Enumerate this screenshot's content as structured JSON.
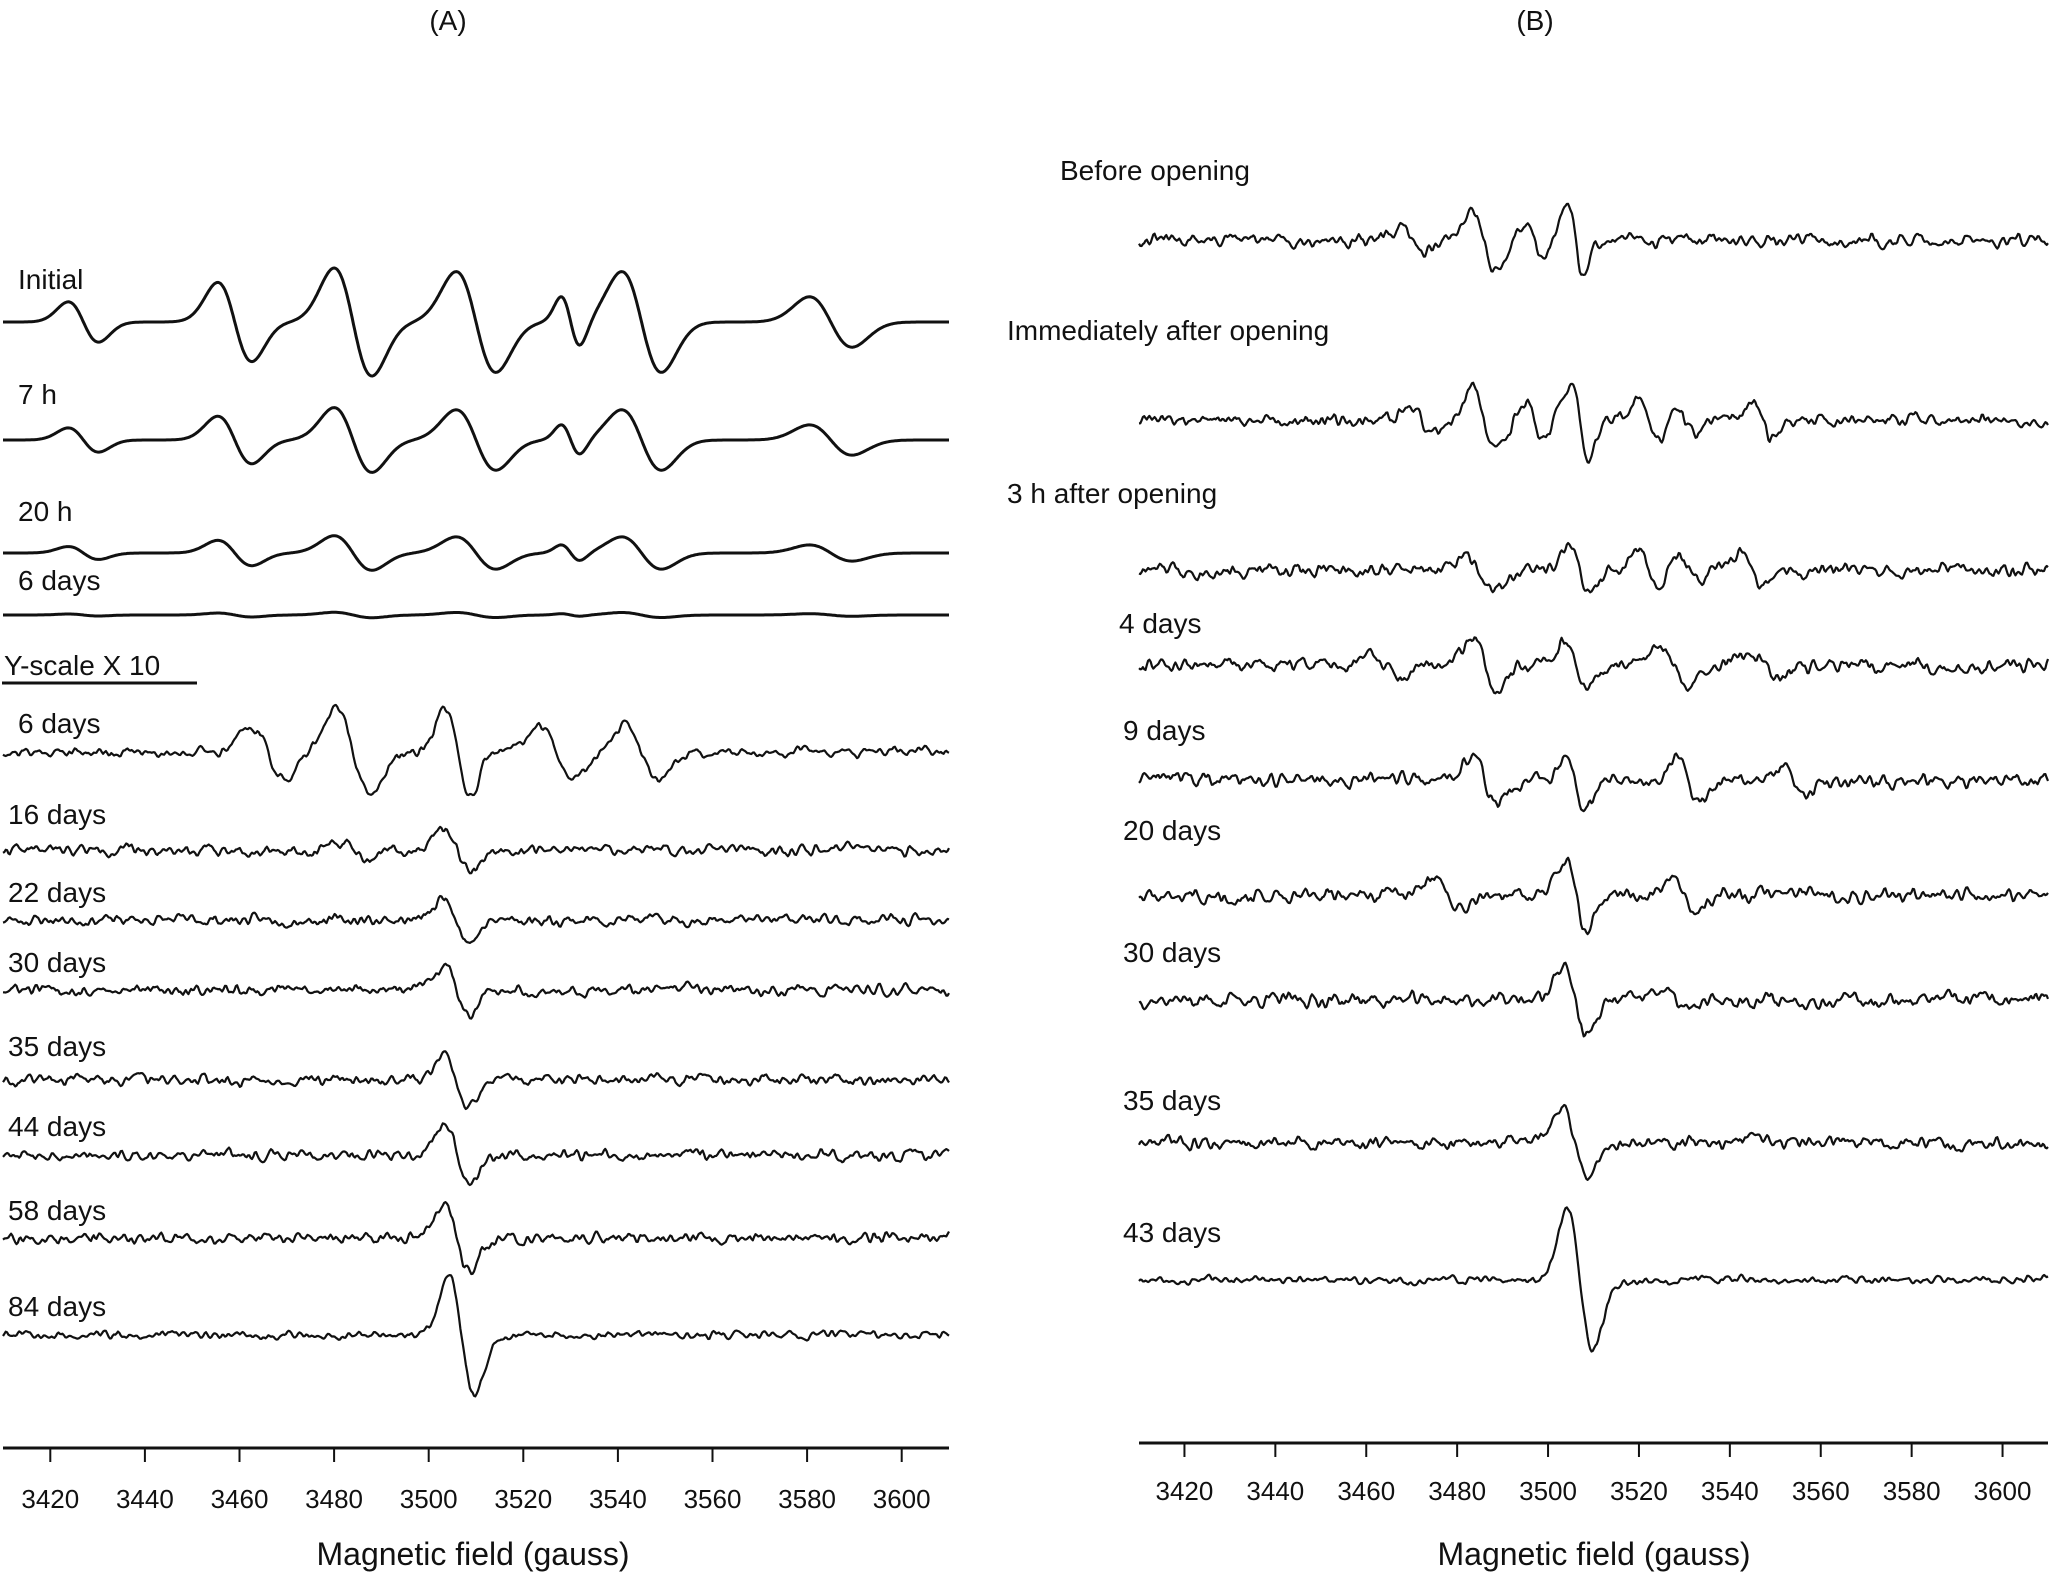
{
  "chart_data": [
    {
      "type": "line",
      "panel_label": "(A)",
      "title": "",
      "xlabel": "Magnetic field (gauss)",
      "ylabel": "",
      "xlim": [
        3410,
        3610
      ],
      "xticks": [
        3420,
        3440,
        3460,
        3480,
        3500,
        3520,
        3540,
        3560,
        3580,
        3600
      ],
      "y_axis": "none (stacked spectra, arbitrary units)",
      "scale_note": "Y-scale X 10",
      "series": [
        {
          "name": "Initial",
          "amplitude": 1.0,
          "noise": 0.0,
          "seed": 11,
          "features": [
            [
              3427,
              3.2,
              0.28
            ],
            [
              3459,
              3.6,
              0.55
            ],
            [
              3484,
              4.0,
              0.75
            ],
            [
              3510,
              4.2,
              0.7
            ],
            [
              3530,
              2.0,
              0.35
            ],
            [
              3545,
              4.2,
              0.7
            ],
            [
              3585,
              4.5,
              0.35
            ]
          ]
        },
        {
          "name": "7 h",
          "amplitude": 0.6,
          "noise": 0.0,
          "seed": 12,
          "features": [
            [
              3427,
              3.2,
              0.28
            ],
            [
              3459,
              3.6,
              0.55
            ],
            [
              3484,
              4.0,
              0.75
            ],
            [
              3510,
              4.2,
              0.7
            ],
            [
              3530,
              2.0,
              0.35
            ],
            [
              3545,
              4.2,
              0.7
            ],
            [
              3585,
              4.5,
              0.35
            ]
          ]
        },
        {
          "name": "20 h",
          "amplitude": 0.32,
          "noise": 0.0,
          "seed": 13,
          "features": [
            [
              3427,
              3.2,
              0.28
            ],
            [
              3459,
              3.6,
              0.55
            ],
            [
              3484,
              4.0,
              0.75
            ],
            [
              3510,
              4.2,
              0.7
            ],
            [
              3530,
              2.0,
              0.35
            ],
            [
              3545,
              4.2,
              0.7
            ],
            [
              3585,
              4.5,
              0.35
            ]
          ]
        },
        {
          "name": "6 days",
          "amplitude": 0.05,
          "noise": 0.0,
          "seed": 14,
          "features": [
            [
              3427,
              3.2,
              0.28
            ],
            [
              3459,
              3.6,
              0.55
            ],
            [
              3484,
              4.0,
              0.75
            ],
            [
              3510,
              4.2,
              0.7
            ],
            [
              3530,
              2.0,
              0.35
            ],
            [
              3545,
              4.2,
              0.7
            ],
            [
              3585,
              4.5,
              0.35
            ]
          ]
        },
        {
          "name": "6 days",
          "amplitude": 0.62,
          "noise": 0.12,
          "seed": 21,
          "features": [
            [
              3466,
              3.5,
              0.6
            ],
            [
              3484,
              3.5,
              1.0
            ],
            [
              3506,
              2.6,
              1.0
            ],
            [
              3527,
              3.5,
              0.6
            ],
            [
              3545,
              3.5,
              0.6
            ]
          ]
        },
        {
          "name": "16 days",
          "amplitude": 0.3,
          "noise": 0.14,
          "seed": 22,
          "features": [
            [
              3484,
              3.0,
              0.45
            ],
            [
              3506,
              2.6,
              1.0
            ]
          ]
        },
        {
          "name": "22 days",
          "amplitude": 0.32,
          "noise": 0.14,
          "seed": 23,
          "features": [
            [
              3506,
              2.6,
              1.0
            ]
          ]
        },
        {
          "name": "30 days",
          "amplitude": 0.33,
          "noise": 0.14,
          "seed": 24,
          "features": [
            [
              3506,
              2.6,
              1.0
            ]
          ]
        },
        {
          "name": "35 days",
          "amplitude": 0.38,
          "noise": 0.14,
          "seed": 25,
          "features": [
            [
              3506,
              2.6,
              1.0
            ]
          ]
        },
        {
          "name": "44 days",
          "amplitude": 0.42,
          "noise": 0.14,
          "seed": 26,
          "features": [
            [
              3506,
              2.6,
              1.0
            ]
          ]
        },
        {
          "name": "58 days",
          "amplitude": 0.48,
          "noise": 0.14,
          "seed": 27,
          "features": [
            [
              3506,
              2.6,
              1.0
            ]
          ]
        },
        {
          "name": "84 days",
          "amplitude": 0.85,
          "noise": 0.1,
          "seed": 28,
          "features": [
            [
              3507,
              2.7,
              1.0
            ]
          ]
        }
      ]
    },
    {
      "type": "line",
      "panel_label": "(B)",
      "title": "",
      "xlabel": "Magnetic field (gauss)",
      "ylabel": "",
      "xlim": [
        3410,
        3610
      ],
      "xticks": [
        3420,
        3440,
        3460,
        3480,
        3500,
        3520,
        3540,
        3560,
        3580,
        3600
      ],
      "y_axis": "none (stacked spectra, arbitrary units)",
      "series": [
        {
          "name": "Before opening",
          "amplitude": 0.5,
          "noise": 0.16,
          "seed": 31,
          "features": [
            [
              3470,
              2.5,
              0.3
            ],
            [
              3486,
              2.6,
              0.9
            ],
            [
              3497,
              2.0,
              0.5
            ],
            [
              3506,
              1.8,
              1.0
            ]
          ]
        },
        {
          "name": "Immediately after opening",
          "amplitude": 0.5,
          "noise": 0.16,
          "seed": 32,
          "features": [
            [
              3472,
              2.5,
              0.4
            ],
            [
              3486,
              2.6,
              0.9
            ],
            [
              3497,
              2.0,
              0.5
            ],
            [
              3507,
              2.0,
              1.0
            ],
            [
              3522,
              2.2,
              0.6
            ],
            [
              3530,
              2.0,
              0.4
            ],
            [
              3547,
              2.2,
              0.5
            ]
          ]
        },
        {
          "name": "3 h after opening",
          "amplitude": 0.5,
          "noise": 0.18,
          "seed": 33,
          "features": [
            [
              3485,
              3.0,
              0.5
            ],
            [
              3507,
              2.2,
              0.7
            ],
            [
              3522,
              2.0,
              0.6
            ],
            [
              3531,
              2.0,
              0.4
            ],
            [
              3545,
              2.2,
              0.5
            ]
          ]
        },
        {
          "name": "4 days",
          "amplitude": 0.5,
          "noise": 0.18,
          "seed": 34,
          "features": [
            [
              3464,
              3.0,
              0.4
            ],
            [
              3486,
              2.8,
              0.8
            ],
            [
              3506,
              2.3,
              0.7
            ],
            [
              3528,
              3.0,
              0.6
            ],
            [
              3548,
              3.0,
              0.4
            ]
          ]
        },
        {
          "name": "9 days",
          "amplitude": 0.5,
          "noise": 0.18,
          "seed": 35,
          "features": [
            [
              3486,
              2.8,
              0.7
            ],
            [
              3506,
              2.2,
              0.8
            ],
            [
              3531,
              2.5,
              0.7
            ],
            [
              3554,
              2.5,
              0.4
            ]
          ]
        },
        {
          "name": "20 days",
          "amplitude": 0.5,
          "noise": 0.18,
          "seed": 36,
          "features": [
            [
              3478,
              3.0,
              0.5
            ],
            [
              3506,
              2.4,
              1.0
            ],
            [
              3530,
              2.5,
              0.5
            ]
          ]
        },
        {
          "name": "30 days",
          "amplitude": 0.5,
          "noise": 0.18,
          "seed": 37,
          "features": [
            [
              3506,
              2.6,
              1.0
            ],
            [
              3528,
              3.0,
              0.3
            ]
          ]
        },
        {
          "name": "35 days",
          "amplitude": 0.55,
          "noise": 0.16,
          "seed": 38,
          "features": [
            [
              3506,
              2.8,
              1.0
            ]
          ]
        },
        {
          "name": "43 days",
          "amplitude": 1.0,
          "noise": 0.1,
          "seed": 39,
          "features": [
            [
              3507,
              2.8,
              1.0
            ]
          ]
        }
      ]
    }
  ]
}
